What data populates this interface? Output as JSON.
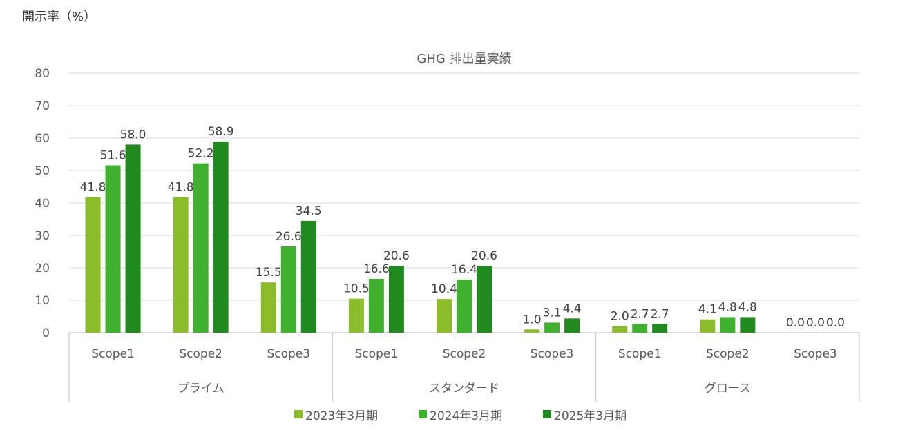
{
  "chart_data": {
    "type": "bar",
    "title": "GHG 排出量実績",
    "ylabel": "開示率（%）",
    "ylim": [
      0,
      80
    ],
    "yticks": [
      0,
      10,
      20,
      30,
      40,
      50,
      60,
      70,
      80
    ],
    "grid": true,
    "legend_position": "bottom",
    "groups": [
      "プライム",
      "スタンダード",
      "グロース"
    ],
    "categories": [
      "Scope1",
      "Scope2",
      "Scope3",
      "Scope1",
      "Scope2",
      "Scope3",
      "Scope1",
      "Scope2",
      "Scope3"
    ],
    "series": [
      {
        "name": "2023年3月期",
        "color": "#8BBC2A",
        "values": [
          41.8,
          41.8,
          15.5,
          10.5,
          10.4,
          1.0,
          2.0,
          4.1,
          0.0
        ]
      },
      {
        "name": "2024年3月期",
        "color": "#3FB12E",
        "values": [
          51.6,
          52.2,
          26.6,
          16.6,
          16.4,
          3.1,
          2.7,
          4.8,
          0.0
        ]
      },
      {
        "name": "2025年3月期",
        "color": "#218A1E",
        "values": [
          58.0,
          58.9,
          34.5,
          20.6,
          20.6,
          4.4,
          2.7,
          4.8,
          0.0
        ]
      }
    ]
  }
}
